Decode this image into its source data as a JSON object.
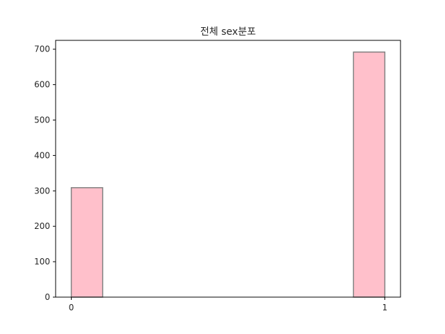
{
  "chart_data": {
    "type": "bar",
    "title": "전체 sex분포",
    "xlabel": "",
    "ylabel": "",
    "x_range": [
      -0.05,
      1.05
    ],
    "ylim": [
      0,
      725
    ],
    "x_ticks": [
      0,
      1
    ],
    "y_ticks": [
      0,
      100,
      200,
      300,
      400,
      500,
      600,
      700
    ],
    "bins": [
      {
        "x0": 0.0,
        "x1": 0.1,
        "value": 309
      },
      {
        "x0": 0.1,
        "x1": 0.2,
        "value": 0
      },
      {
        "x0": 0.2,
        "x1": 0.3,
        "value": 0
      },
      {
        "x0": 0.3,
        "x1": 0.4,
        "value": 0
      },
      {
        "x0": 0.4,
        "x1": 0.5,
        "value": 0
      },
      {
        "x0": 0.5,
        "x1": 0.6,
        "value": 0
      },
      {
        "x0": 0.6,
        "x1": 0.7,
        "value": 0
      },
      {
        "x0": 0.7,
        "x1": 0.8,
        "value": 0
      },
      {
        "x0": 0.8,
        "x1": 0.9,
        "value": 0
      },
      {
        "x0": 0.9,
        "x1": 1.0,
        "value": 692
      }
    ],
    "grid": false,
    "bar_color": "#ffc0cb",
    "edge_color": "#808080"
  }
}
